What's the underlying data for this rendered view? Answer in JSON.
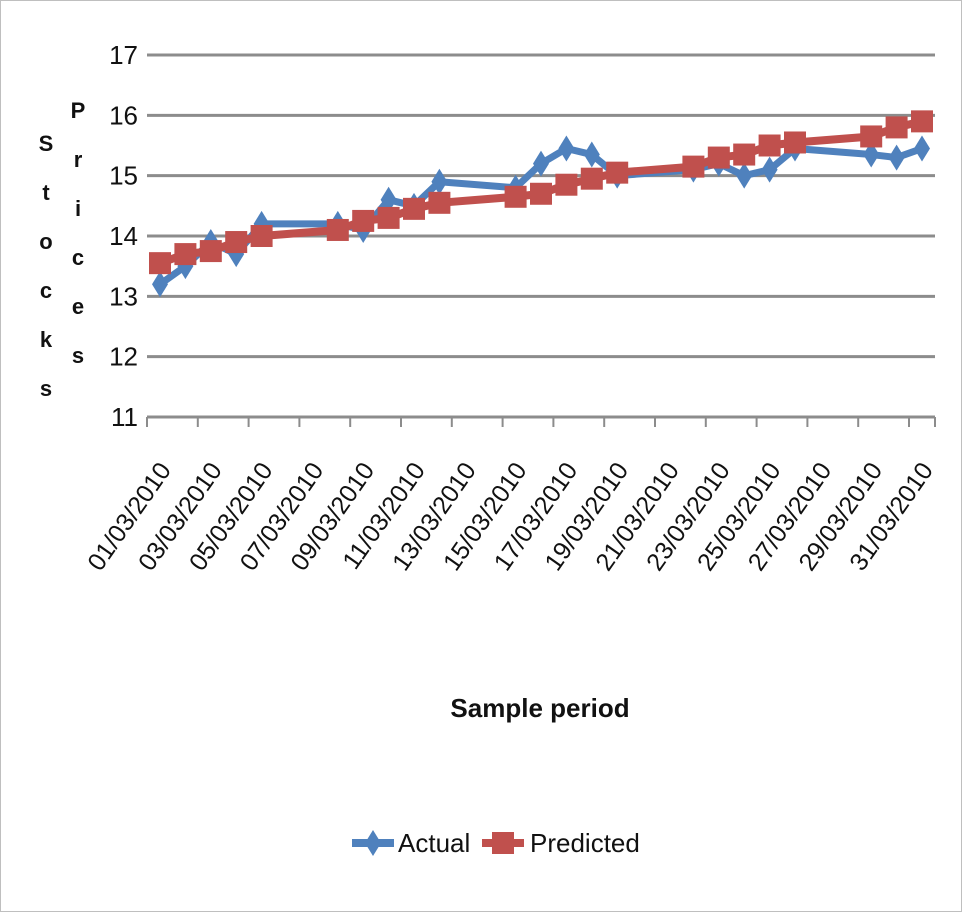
{
  "chart_data": {
    "type": "line",
    "title": "",
    "xlabel": "Sample period",
    "ylabel_line1": "Stocks",
    "ylabel_line2": "Prices",
    "ylim": [
      11,
      17
    ],
    "yticks": [
      11,
      12,
      13,
      14,
      15,
      16,
      17
    ],
    "grid": true,
    "legend_position": "bottom",
    "x_tick_labels": [
      "01/03/2010",
      "03/03/2010",
      "05/03/2010",
      "07/03/2010",
      "09/03/2010",
      "11/03/2010",
      "13/03/2010",
      "15/03/2010",
      "17/03/2010",
      "19/03/2010",
      "21/03/2010",
      "23/03/2010",
      "25/03/2010",
      "27/03/2010",
      "29/03/2010",
      "31/03/2010"
    ],
    "x_day_range": [
      1,
      31
    ],
    "series": [
      {
        "name": "Actual",
        "color": "#4f81bd",
        "marker": "diamond",
        "points": [
          {
            "x": "01/03/2010",
            "y": 13.2
          },
          {
            "x": "02/03/2010",
            "y": 13.5
          },
          {
            "x": "03/03/2010",
            "y": 13.9
          },
          {
            "x": "04/03/2010",
            "y": 13.7
          },
          {
            "x": "05/03/2010",
            "y": 14.2
          },
          {
            "x": "08/03/2010",
            "y": 14.2
          },
          {
            "x": "09/03/2010",
            "y": 14.1
          },
          {
            "x": "10/03/2010",
            "y": 14.6
          },
          {
            "x": "11/03/2010",
            "y": 14.5
          },
          {
            "x": "12/03/2010",
            "y": 14.9
          },
          {
            "x": "15/03/2010",
            "y": 14.8
          },
          {
            "x": "16/03/2010",
            "y": 15.2
          },
          {
            "x": "17/03/2010",
            "y": 15.45
          },
          {
            "x": "18/03/2010",
            "y": 15.35
          },
          {
            "x": "19/03/2010",
            "y": 15.0
          },
          {
            "x": "22/03/2010",
            "y": 15.1
          },
          {
            "x": "23/03/2010",
            "y": 15.2
          },
          {
            "x": "24/03/2010",
            "y": 15.0
          },
          {
            "x": "25/03/2010",
            "y": 15.1
          },
          {
            "x": "26/03/2010",
            "y": 15.45
          },
          {
            "x": "29/03/2010",
            "y": 15.35
          },
          {
            "x": "30/03/2010",
            "y": 15.3
          },
          {
            "x": "31/03/2010",
            "y": 15.45
          }
        ]
      },
      {
        "name": "Predicted",
        "color": "#c0504d",
        "marker": "square",
        "points": [
          {
            "x": "01/03/2010",
            "y": 13.55
          },
          {
            "x": "02/03/2010",
            "y": 13.7
          },
          {
            "x": "03/03/2010",
            "y": 13.75
          },
          {
            "x": "04/03/2010",
            "y": 13.9
          },
          {
            "x": "05/03/2010",
            "y": 14.0
          },
          {
            "x": "08/03/2010",
            "y": 14.1
          },
          {
            "x": "09/03/2010",
            "y": 14.25
          },
          {
            "x": "10/03/2010",
            "y": 14.3
          },
          {
            "x": "11/03/2010",
            "y": 14.45
          },
          {
            "x": "12/03/2010",
            "y": 14.55
          },
          {
            "x": "15/03/2010",
            "y": 14.65
          },
          {
            "x": "16/03/2010",
            "y": 14.7
          },
          {
            "x": "17/03/2010",
            "y": 14.85
          },
          {
            "x": "18/03/2010",
            "y": 14.95
          },
          {
            "x": "19/03/2010",
            "y": 15.05
          },
          {
            "x": "22/03/2010",
            "y": 15.15
          },
          {
            "x": "23/03/2010",
            "y": 15.3
          },
          {
            "x": "24/03/2010",
            "y": 15.35
          },
          {
            "x": "25/03/2010",
            "y": 15.5
          },
          {
            "x": "26/03/2010",
            "y": 15.55
          },
          {
            "x": "29/03/2010",
            "y": 15.65
          },
          {
            "x": "30/03/2010",
            "y": 15.8
          },
          {
            "x": "31/03/2010",
            "y": 15.9
          }
        ]
      }
    ]
  }
}
